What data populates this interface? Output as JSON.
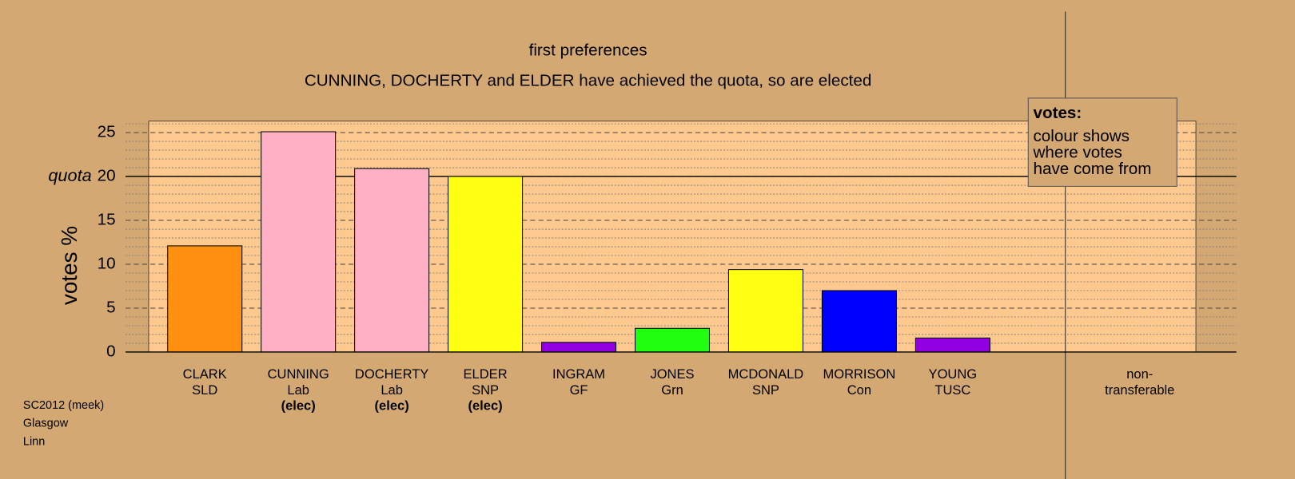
{
  "chart_data": {
    "type": "bar",
    "title": "first preferences",
    "subtitle": "CUNNING, DOCHERTY and ELDER have achieved the quota, so are elected",
    "y_label": "votes %",
    "categories": [
      "CLARK",
      "CUNNING",
      "DOCHERTY",
      "ELDER",
      "INGRAM",
      "JONES",
      "MCDONALD",
      "MORRISON",
      "YOUNG"
    ],
    "parties": [
      "SLD",
      "Lab",
      "Lab",
      "SNP",
      "GF",
      "Grn",
      "SNP",
      "Con",
      "TUSC"
    ],
    "status": [
      null,
      "(elec)",
      "(elec)",
      "(elec)",
      null,
      null,
      null,
      null,
      null
    ],
    "values": [
      12.1,
      25.1,
      20.9,
      20.0,
      1.1,
      2.7,
      9.4,
      7.0,
      1.6
    ],
    "colors": [
      "#ff9010",
      "#ffb0c4",
      "#ffb0c4",
      "#ffff14",
      "#9000e0",
      "#20ff10",
      "#ffff14",
      "#0000ff",
      "#9000e0"
    ],
    "nontransferable": {
      "label": [
        "non-",
        "transferable"
      ],
      "value": 0
    },
    "ylim": [
      0,
      26.3
    ],
    "yticks": [
      0,
      5,
      10,
      15,
      20,
      25
    ],
    "minor_yticks": [
      1,
      2,
      3,
      4,
      6,
      7,
      8,
      9,
      11,
      12,
      13,
      14,
      16,
      17,
      18,
      19,
      21,
      22,
      23,
      24,
      26
    ],
    "quota": {
      "label": "quota",
      "value": 20
    },
    "legend": {
      "title": "votes:",
      "lines": [
        "colour shows",
        "where votes",
        "have come from"
      ]
    },
    "footer": [
      "SC2012 (meek)",
      "Glasgow",
      "Linn"
    ]
  }
}
